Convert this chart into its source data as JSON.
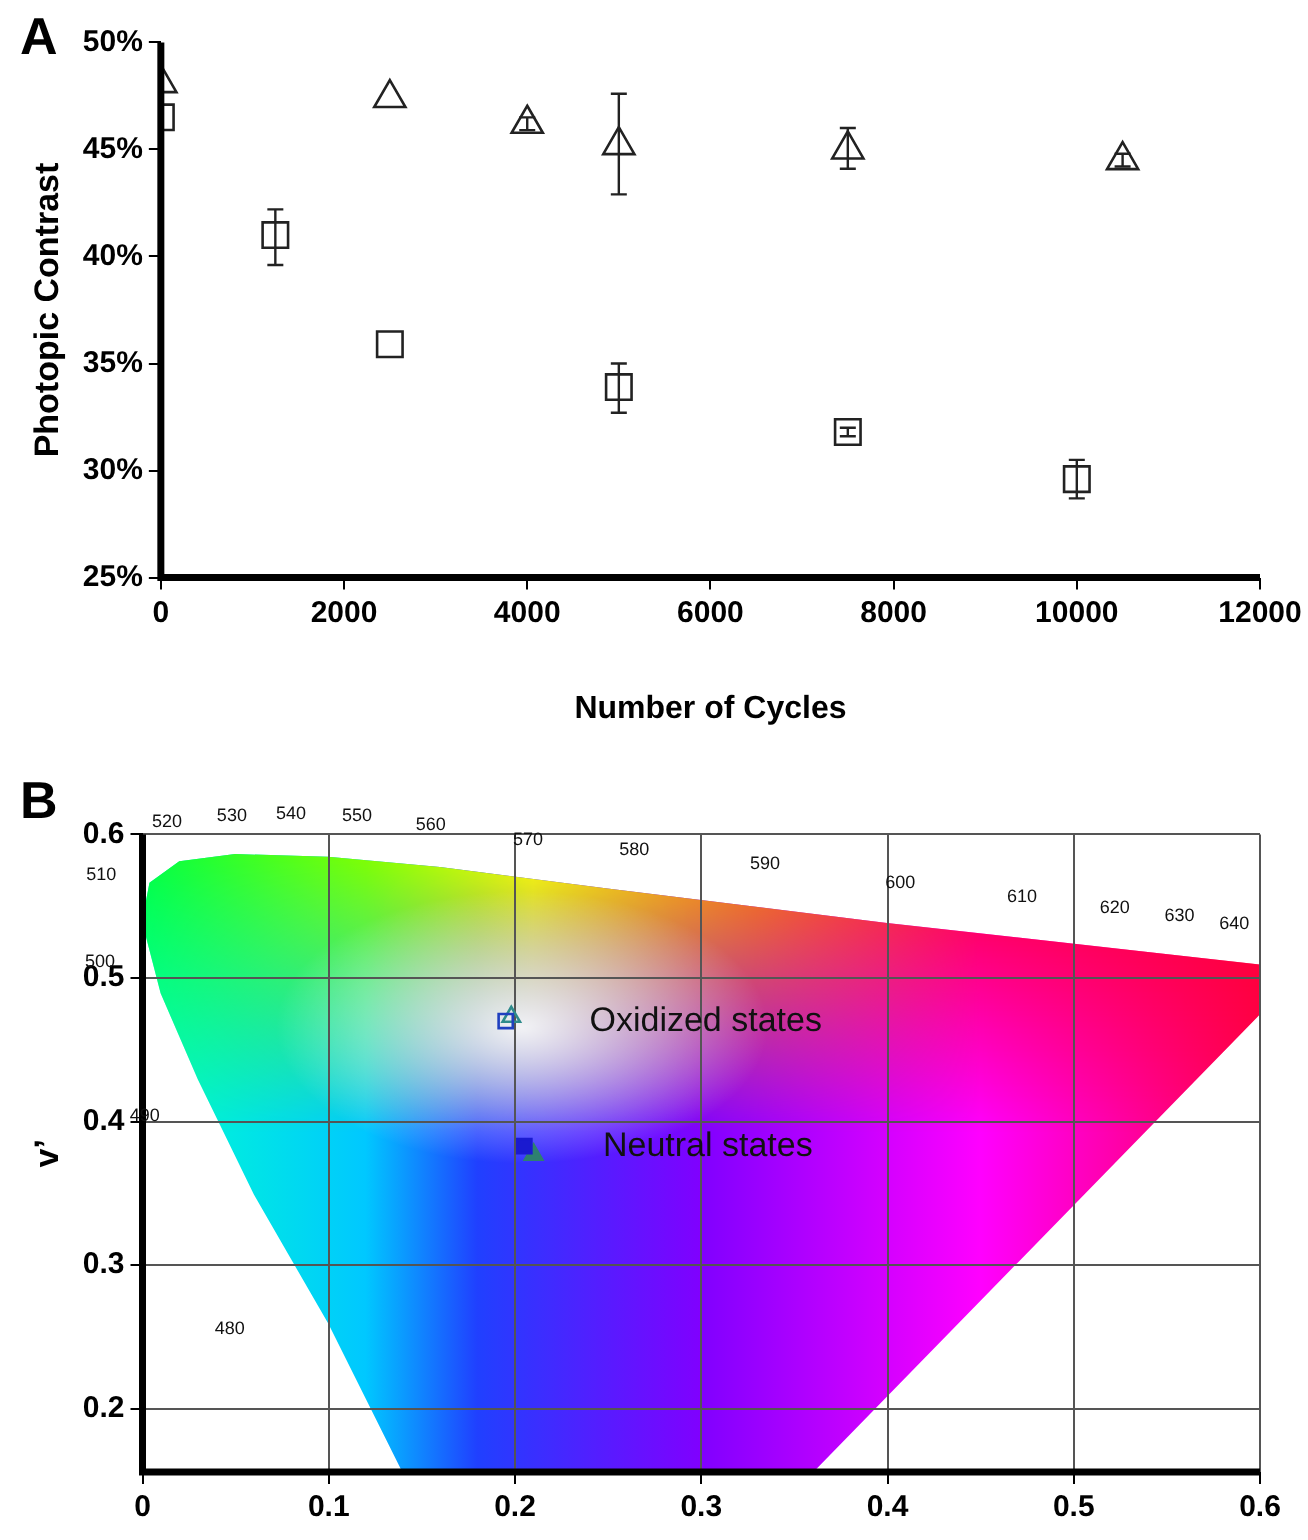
{
  "chart_data": [
    {
      "type": "scatter",
      "title": "A",
      "xlabel": "Number of Cycles",
      "ylabel": "Photopic Contrast",
      "xlim": [
        0,
        12000
      ],
      "xticks": [
        0,
        2000,
        4000,
        6000,
        8000,
        10000,
        12000
      ],
      "ylim": [
        25,
        50
      ],
      "yticks": [
        {
          "value": 25,
          "label": "25%"
        },
        {
          "value": 30,
          "label": "30%"
        },
        {
          "value": 35,
          "label": "35%"
        },
        {
          "value": 40,
          "label": "40%"
        },
        {
          "value": 45,
          "label": "45%"
        },
        {
          "value": 50,
          "label": "50%"
        }
      ],
      "grid": false,
      "legend": false,
      "series": [
        {
          "color": "#222222",
          "marker": "triangle",
          "x": [
            0,
            2500,
            4000,
            5000,
            7500,
            10500
          ],
          "values": [
            48.1,
            47.4,
            46.2,
            45.2,
            45.0,
            44.5
          ],
          "errors": [
            null,
            null,
            0.3,
            [
              42.9,
              47.6
            ],
            [
              44.1,
              46.0
            ],
            0.3
          ]
        },
        {
          "color": "#222222",
          "marker": "square",
          "x": [
            0,
            1250,
            2500,
            5000,
            7500,
            10000
          ],
          "values": [
            46.5,
            41.0,
            35.9,
            33.9,
            31.8,
            29.6
          ],
          "errors": [
            null,
            [
              39.6,
              42.2
            ],
            null,
            [
              32.7,
              35.0
            ],
            0.2,
            [
              28.7,
              30.5
            ]
          ]
        }
      ]
    },
    {
      "type": "scatter",
      "title": "B",
      "ylabel": "v’",
      "xlim": [
        0,
        0.6
      ],
      "xticks": [
        0,
        0.1,
        0.2,
        0.3,
        0.4,
        0.5,
        0.6
      ],
      "ylim": [
        0.156,
        0.6
      ],
      "yticks": [
        0.2,
        0.3,
        0.4,
        0.5,
        0.6
      ],
      "grid": true,
      "legend": false,
      "series": [
        {
          "color": "#1f3fbf",
          "marker": "square",
          "x": [
            0.195
          ],
          "values": [
            0.47
          ]
        },
        {
          "color": "#2e8b8b",
          "marker": "triangle",
          "x": [
            0.198
          ],
          "values": [
            0.473
          ]
        },
        {
          "color": "#1a1ad0",
          "marker": "square",
          "x": [
            0.205
          ],
          "values": [
            0.383
          ]
        },
        {
          "color": "#2e8070",
          "marker": "triangle",
          "x": [
            0.21
          ],
          "values": [
            0.377
          ]
        }
      ],
      "annotations": [
        "Oxidized states",
        "Neutral states",
        "520",
        "530",
        "540",
        "550",
        "560",
        "570",
        "580",
        "590",
        "600",
        "610",
        "620",
        "630",
        "640",
        "510",
        "500",
        "490",
        "480"
      ]
    }
  ]
}
